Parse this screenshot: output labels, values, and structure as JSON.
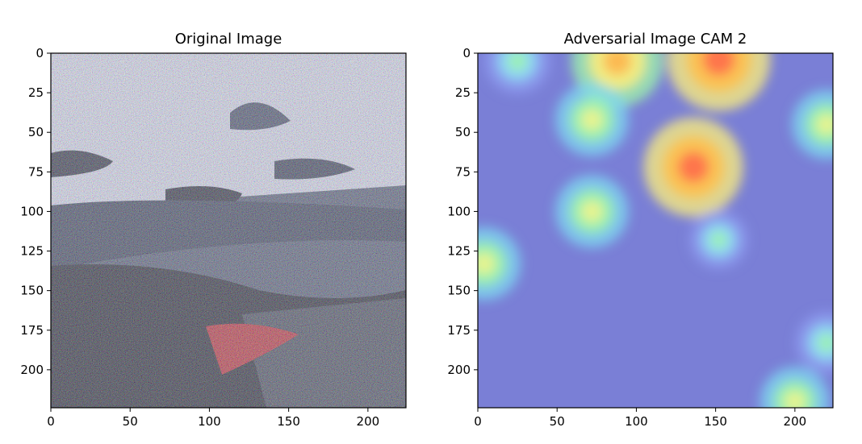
{
  "chart_data": [
    {
      "type": "image",
      "title": "Original Image",
      "xlim": [
        0,
        224
      ],
      "ylim": [
        224,
        0
      ],
      "xticks": [
        0,
        50,
        100,
        150,
        200
      ],
      "yticks": [
        0,
        25,
        50,
        75,
        100,
        125,
        150,
        175,
        200
      ],
      "content": "noisy photograph with strong adversarial perturbation; dark lower-left region, bright textured upper region, red patch near x 100-140 / y 170-205"
    },
    {
      "type": "heatmap",
      "title": "Adversarial Image CAM 2",
      "xlim": [
        0,
        224
      ],
      "ylim": [
        224,
        0
      ],
      "xticks": [
        0,
        50,
        100,
        150,
        200
      ],
      "yticks": [
        0,
        25,
        50,
        75,
        100,
        125,
        150,
        175,
        200
      ],
      "colormap": "jet (semi-transparent overlay)",
      "hotspots": [
        {
          "x": 152,
          "y": 4,
          "level": 1.0
        },
        {
          "x": 88,
          "y": 5,
          "level": 0.85
        },
        {
          "x": 136,
          "y": 72,
          "level": 0.95
        },
        {
          "x": 72,
          "y": 42,
          "level": 0.6
        },
        {
          "x": 72,
          "y": 100,
          "level": 0.6
        },
        {
          "x": 4,
          "y": 133,
          "level": 0.6
        },
        {
          "x": 220,
          "y": 45,
          "level": 0.55
        },
        {
          "x": 200,
          "y": 220,
          "level": 0.55
        },
        {
          "x": 220,
          "y": 183,
          "level": 0.45
        },
        {
          "x": 152,
          "y": 118,
          "level": 0.4
        },
        {
          "x": 25,
          "y": 5,
          "level": 0.5
        }
      ]
    }
  ],
  "colors": {
    "background": "#ffffff",
    "cam_base": "#7a7fd6"
  }
}
